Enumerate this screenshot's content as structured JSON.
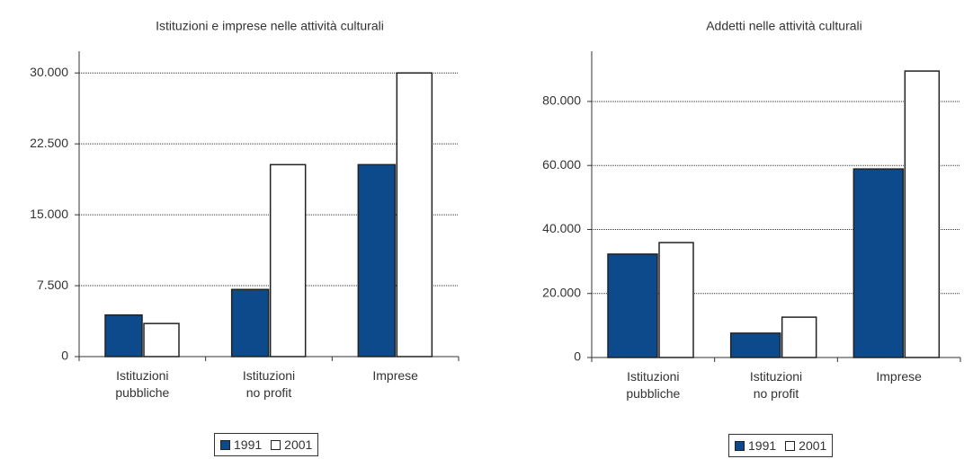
{
  "chart_data": [
    {
      "type": "bar",
      "title": "Istituzioni e imprese nelle attività culturali",
      "categories": [
        "Istituzioni\npubbliche",
        "Istituzioni\nno profit",
        "Imprese"
      ],
      "series": [
        {
          "name": "1991",
          "color": "#0d4a8c",
          "values": [
            4400,
            7100,
            20300
          ]
        },
        {
          "name": "2001",
          "color": "#ffffff",
          "values": [
            3500,
            20300,
            30000
          ]
        }
      ],
      "ylim": [
        0,
        32300
      ],
      "yticks": [
        0,
        {
          "value": 7500,
          "label": "7.500"
        },
        {
          "value": 15000,
          "label": "15.000"
        },
        {
          "value": 22500,
          "label": "22.500"
        },
        {
          "value": 30000,
          "label": "30.000"
        }
      ],
      "grid": true,
      "legend": "bottom"
    },
    {
      "type": "bar",
      "title": "Addetti nelle attività culturali",
      "categories": [
        "Istituzioni\npubbliche",
        "Istituzioni\nno profit",
        "Imprese"
      ],
      "series": [
        {
          "name": "1991",
          "color": "#0d4a8c",
          "values": [
            32300,
            7600,
            58900
          ]
        },
        {
          "name": "2001",
          "color": "#ffffff",
          "values": [
            35900,
            12600,
            89500
          ]
        }
      ],
      "ylim": [
        0,
        95700
      ],
      "yticks": [
        0,
        {
          "value": 20000,
          "label": "20.000"
        },
        {
          "value": 40000,
          "label": "40.000"
        },
        {
          "value": 60000,
          "label": "60.000"
        },
        {
          "value": 80000,
          "label": "80.000"
        }
      ],
      "grid": true,
      "legend": "bottom"
    }
  ]
}
